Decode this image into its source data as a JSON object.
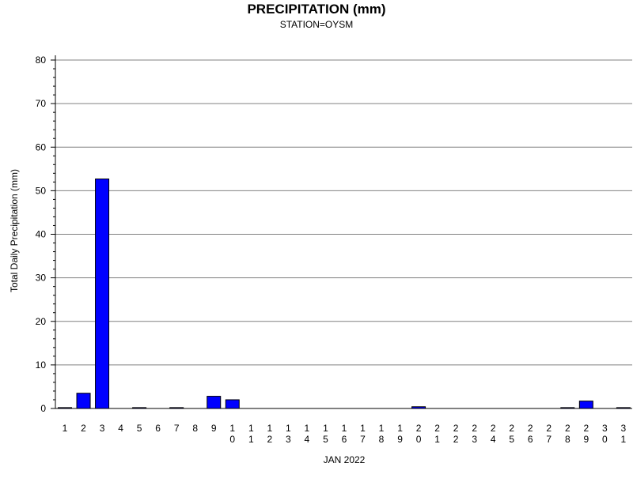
{
  "chart_data": {
    "type": "bar",
    "title": "PRECIPITATION (mm)",
    "subtitle": "STATION=OYSM",
    "xlabel": "JAN 2022",
    "ylabel": "Total Daily Precipitation (mm)",
    "ylim": [
      0,
      80
    ],
    "yticks": [
      0,
      10,
      20,
      30,
      40,
      50,
      60,
      70,
      80
    ],
    "grid": true,
    "bar_color": "#0000ff",
    "categories": [
      "1",
      "2",
      "3",
      "4",
      "5",
      "6",
      "7",
      "8",
      "9",
      "10",
      "11",
      "12",
      "13",
      "14",
      "15",
      "16",
      "17",
      "18",
      "19",
      "20",
      "21",
      "22",
      "23",
      "24",
      "25",
      "26",
      "27",
      "28",
      "29",
      "30",
      "31"
    ],
    "values": [
      0.2,
      3.5,
      52.7,
      null,
      0.2,
      null,
      0.2,
      null,
      2.8,
      2.0,
      null,
      null,
      null,
      null,
      null,
      null,
      null,
      null,
      null,
      0.4,
      null,
      null,
      null,
      null,
      null,
      null,
      null,
      0.2,
      1.7,
      null,
      0.2
    ]
  }
}
